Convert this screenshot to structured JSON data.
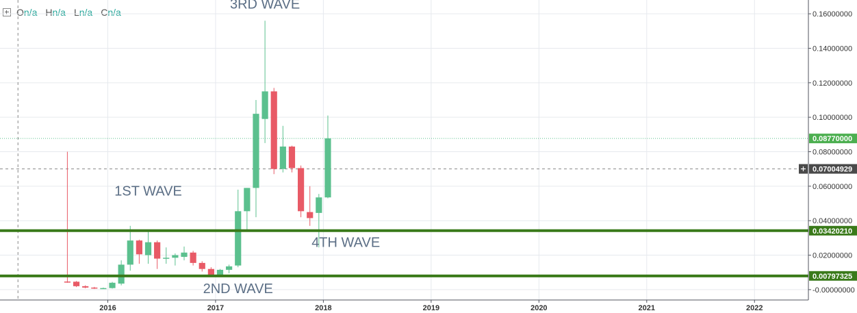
{
  "legend": {
    "o_label": "O",
    "o_value": "n/a",
    "h_label": "H",
    "h_value": "n/a",
    "l_label": "L",
    "l_value": "n/a",
    "c_label": "C",
    "c_value": "n/a"
  },
  "colors": {
    "up": "#5bc08e",
    "down": "#e85a66",
    "support": "#3a7a1a",
    "price_label_bg": "#4caf50",
    "crosshair_label_bg": "#4a4a4a",
    "annotation": "#5b6e85",
    "grid": "#e6e9ee"
  },
  "chart_data": {
    "type": "candlestick",
    "x_ticks": [
      "2016",
      "2017",
      "2018",
      "2019",
      "2020",
      "2021",
      "2022"
    ],
    "y_ticks": [
      "0.16000000",
      "0.14000000",
      "0.12000000",
      "0.10000000",
      "0.08000000",
      "0.06000000",
      "0.04000000",
      "0.02000000",
      "-0.00000000"
    ],
    "ylim": [
      -0.006,
      0.168
    ],
    "xlim": [
      "2015-01",
      "2022-07"
    ],
    "candles": [
      {
        "t": "2015-08",
        "o": 0.0047,
        "h": 0.08,
        "l": 0.004,
        "c": 0.0045
      },
      {
        "t": "2015-09",
        "o": 0.0046,
        "h": 0.005,
        "l": 0.0015,
        "c": 0.002
      },
      {
        "t": "2015-10",
        "o": 0.002,
        "h": 0.0025,
        "l": 0.0008,
        "c": 0.0012
      },
      {
        "t": "2015-11",
        "o": 0.0012,
        "h": 0.0016,
        "l": 0.0004,
        "c": 0.0007
      },
      {
        "t": "2015-12",
        "o": 0.0007,
        "h": 0.0012,
        "l": 0.0004,
        "c": 0.0009
      },
      {
        "t": "2016-01",
        "o": 0.0009,
        "h": 0.0045,
        "l": 0.0006,
        "c": 0.004
      },
      {
        "t": "2016-02",
        "o": 0.0035,
        "h": 0.017,
        "l": 0.0025,
        "c": 0.0145
      },
      {
        "t": "2016-03",
        "o": 0.0145,
        "h": 0.037,
        "l": 0.011,
        "c": 0.0285
      },
      {
        "t": "2016-04",
        "o": 0.0285,
        "h": 0.029,
        "l": 0.015,
        "c": 0.0205
      },
      {
        "t": "2016-05",
        "o": 0.02,
        "h": 0.034,
        "l": 0.015,
        "c": 0.0275
      },
      {
        "t": "2016-06",
        "o": 0.0275,
        "h": 0.0285,
        "l": 0.012,
        "c": 0.018
      },
      {
        "t": "2016-07",
        "o": 0.018,
        "h": 0.0245,
        "l": 0.015,
        "c": 0.0185
      },
      {
        "t": "2016-08",
        "o": 0.0185,
        "h": 0.021,
        "l": 0.014,
        "c": 0.02
      },
      {
        "t": "2016-09",
        "o": 0.019,
        "h": 0.025,
        "l": 0.017,
        "c": 0.0215
      },
      {
        "t": "2016-10",
        "o": 0.0215,
        "h": 0.0225,
        "l": 0.014,
        "c": 0.0155
      },
      {
        "t": "2016-11",
        "o": 0.0155,
        "h": 0.0165,
        "l": 0.0105,
        "c": 0.012
      },
      {
        "t": "2016-12",
        "o": 0.012,
        "h": 0.013,
        "l": 0.0075,
        "c": 0.0085
      },
      {
        "t": "2017-01",
        "o": 0.0085,
        "h": 0.012,
        "l": 0.0075,
        "c": 0.0115
      },
      {
        "t": "2017-02",
        "o": 0.0115,
        "h": 0.0145,
        "l": 0.0095,
        "c": 0.0135
      },
      {
        "t": "2017-03",
        "o": 0.014,
        "h": 0.058,
        "l": 0.013,
        "c": 0.0455
      },
      {
        "t": "2017-04",
        "o": 0.0455,
        "h": 0.059,
        "l": 0.034,
        "c": 0.059
      },
      {
        "t": "2017-05",
        "o": 0.059,
        "h": 0.11,
        "l": 0.042,
        "c": 0.102
      },
      {
        "t": "2017-06",
        "o": 0.099,
        "h": 0.156,
        "l": 0.085,
        "c": 0.115
      },
      {
        "t": "2017-07",
        "o": 0.115,
        "h": 0.117,
        "l": 0.067,
        "c": 0.07
      },
      {
        "t": "2017-08",
        "o": 0.07,
        "h": 0.095,
        "l": 0.068,
        "c": 0.083
      },
      {
        "t": "2017-09",
        "o": 0.083,
        "h": 0.0835,
        "l": 0.068,
        "c": 0.0705
      },
      {
        "t": "2017-10",
        "o": 0.0705,
        "h": 0.072,
        "l": 0.042,
        "c": 0.0455
      },
      {
        "t": "2017-11",
        "o": 0.045,
        "h": 0.06,
        "l": 0.037,
        "c": 0.0415
      },
      {
        "t": "2017-12",
        "o": 0.0445,
        "h": 0.0555,
        "l": 0.0245,
        "c": 0.0535
      },
      {
        "t": "2018-01",
        "o": 0.0535,
        "h": 0.101,
        "l": 0.053,
        "c": 0.0877
      }
    ],
    "support_levels": [
      0.0342021,
      0.00797325
    ],
    "last_price_label": "0.08770000",
    "last_price": 0.0877,
    "crosshair_label": "0.07004929",
    "crosshair_price": 0.07004929,
    "support_labels": [
      "0.03420210",
      "0.00797325"
    ],
    "crosshair_date": "2015-03",
    "annotations": [
      {
        "text": "3RD WAVE",
        "t": "2017-06",
        "y": 0.163
      },
      {
        "text": "1ST WAVE",
        "t": "2016-05",
        "y": 0.0545
      },
      {
        "text": "2ND WAVE",
        "t": "2017-03",
        "y": -0.002
      },
      {
        "text": "4TH WAVE",
        "t": "2018-03",
        "y": 0.0248
      }
    ],
    "grid": true
  }
}
